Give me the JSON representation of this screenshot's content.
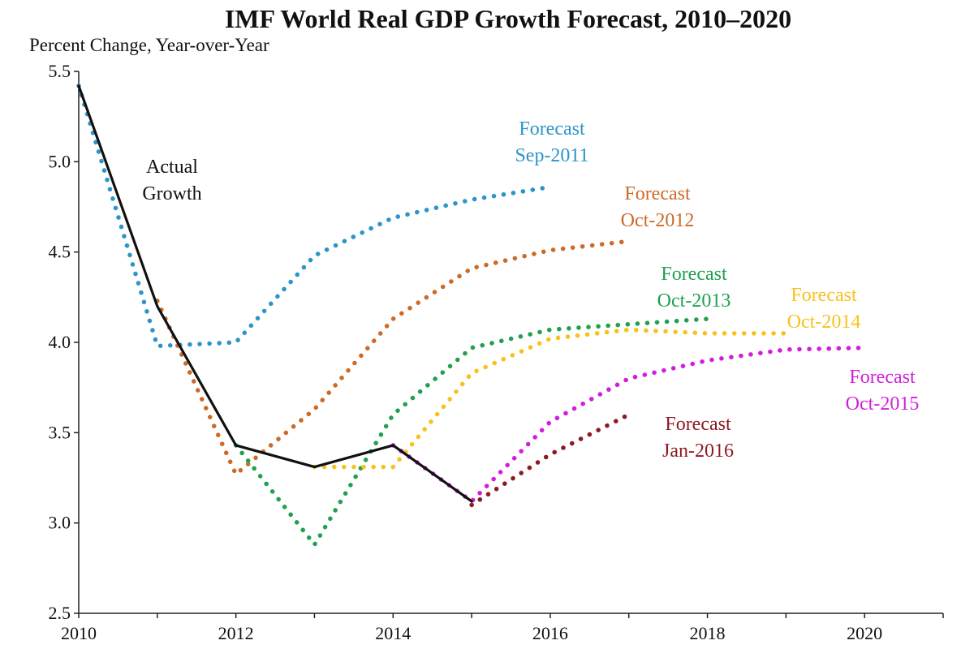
{
  "chart_data": {
    "type": "line",
    "title": "IMF World Real GDP Growth Forecast, 2010–2020",
    "ylabel": "Percent Change, Year-over-Year",
    "xlabel": "",
    "xlim": [
      2010,
      2021
    ],
    "ylim": [
      2.5,
      5.5
    ],
    "x_ticks": [
      2010,
      2012,
      2014,
      2016,
      2018,
      2020
    ],
    "y_ticks": [
      "5.5",
      "5.0",
      "4.5",
      "4.0",
      "3.5",
      "3.0",
      "2.5"
    ],
    "series": [
      {
        "name": "Actual Growth",
        "style": "solid",
        "color": "#111111",
        "label_lines": [
          "Actual",
          "Growth"
        ],
        "x": [
          2010,
          2011,
          2012,
          2013,
          2014,
          2015
        ],
        "y": [
          5.42,
          4.2,
          3.43,
          3.31,
          3.43,
          3.12
        ]
      },
      {
        "name": "Forecast Sep-2011",
        "style": "dotted",
        "color": "#2b95c8",
        "label_lines": [
          "Forecast",
          "Sep-2011"
        ],
        "x": [
          2010,
          2011,
          2012,
          2013,
          2014,
          2015,
          2016
        ],
        "y": [
          5.42,
          3.98,
          4.0,
          4.48,
          4.69,
          4.79,
          4.86
        ]
      },
      {
        "name": "Forecast Oct-2012",
        "style": "dotted",
        "color": "#cd6a28",
        "label_lines": [
          "Forecast",
          "Oct-2012"
        ],
        "x": [
          2011,
          2012,
          2013,
          2014,
          2015,
          2016,
          2017
        ],
        "y": [
          4.23,
          3.27,
          3.63,
          4.13,
          4.41,
          4.51,
          4.56
        ]
      },
      {
        "name": "Forecast Oct-2013",
        "style": "dotted",
        "color": "#20a050",
        "label_lines": [
          "Forecast",
          "Oct-2013"
        ],
        "x": [
          2012,
          2013,
          2014,
          2015,
          2016,
          2017,
          2018
        ],
        "y": [
          3.43,
          2.88,
          3.6,
          3.97,
          4.07,
          4.1,
          4.13
        ]
      },
      {
        "name": "Forecast Oct-2014",
        "style": "dotted",
        "color": "#f7c21c",
        "label_lines": [
          "Forecast",
          "Oct-2014"
        ],
        "x": [
          2013,
          2014,
          2015,
          2016,
          2017,
          2018,
          2019
        ],
        "y": [
          3.31,
          3.31,
          3.83,
          4.02,
          4.07,
          4.05,
          4.05
        ]
      },
      {
        "name": "Forecast Oct-2015",
        "style": "dotted",
        "color": "#d21edc",
        "label_lines": [
          "Forecast",
          "Oct-2015"
        ],
        "x": [
          2014,
          2015,
          2016,
          2017,
          2018,
          2019,
          2020
        ],
        "y": [
          3.43,
          3.12,
          3.56,
          3.8,
          3.9,
          3.96,
          3.97
        ]
      },
      {
        "name": "Forecast Jan-2016",
        "style": "dotted",
        "color": "#8c1a22",
        "label_lines": [
          "Forecast",
          "Jan-2016"
        ],
        "x": [
          2015,
          2016,
          2017
        ],
        "y": [
          3.1,
          3.38,
          3.6
        ]
      }
    ]
  }
}
